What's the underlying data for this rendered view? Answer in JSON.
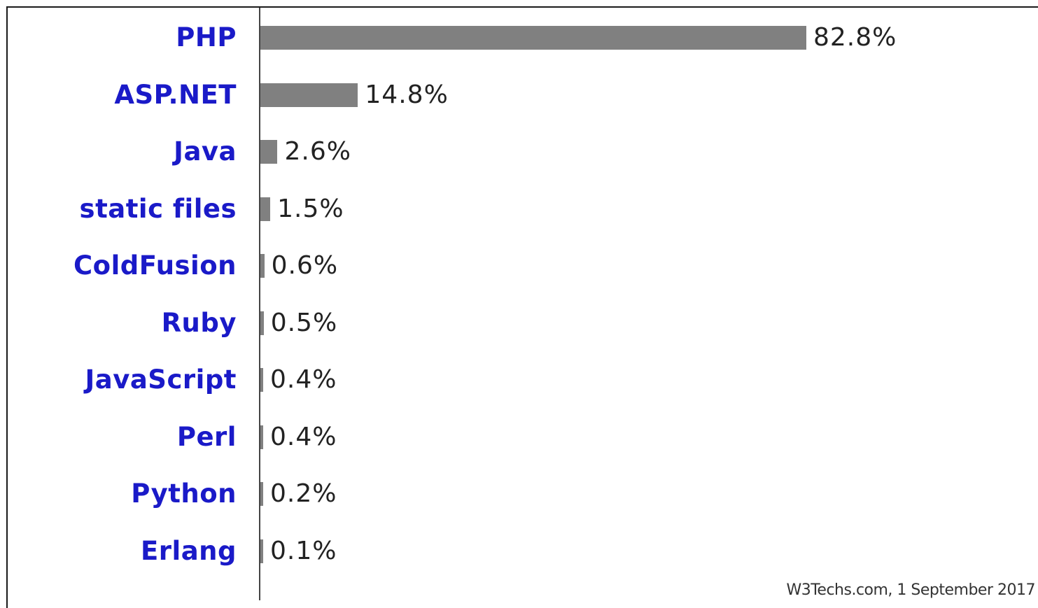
{
  "chart_data": {
    "type": "bar",
    "orientation": "horizontal",
    "categories": [
      "PHP",
      "ASP.NET",
      "Java",
      "static files",
      "ColdFusion",
      "Ruby",
      "JavaScript",
      "Perl",
      "Python",
      "Erlang"
    ],
    "values": [
      82.8,
      14.8,
      2.6,
      1.5,
      0.6,
      0.5,
      0.4,
      0.4,
      0.2,
      0.1
    ],
    "value_labels": [
      "82.8%",
      "14.8%",
      "2.6%",
      "1.5%",
      "0.6%",
      "0.5%",
      "0.4%",
      "0.4%",
      "0.2%",
      "0.1%"
    ],
    "unit": "%",
    "xlim": [
      0,
      100
    ],
    "title": "",
    "xlabel": "",
    "ylabel": "",
    "grid": false,
    "legend": "none",
    "source_note": "W3Techs.com, 1 September 2017"
  },
  "colors": {
    "bar": "#808080",
    "category_label": "#1a1ac8",
    "value_label": "#222222"
  }
}
